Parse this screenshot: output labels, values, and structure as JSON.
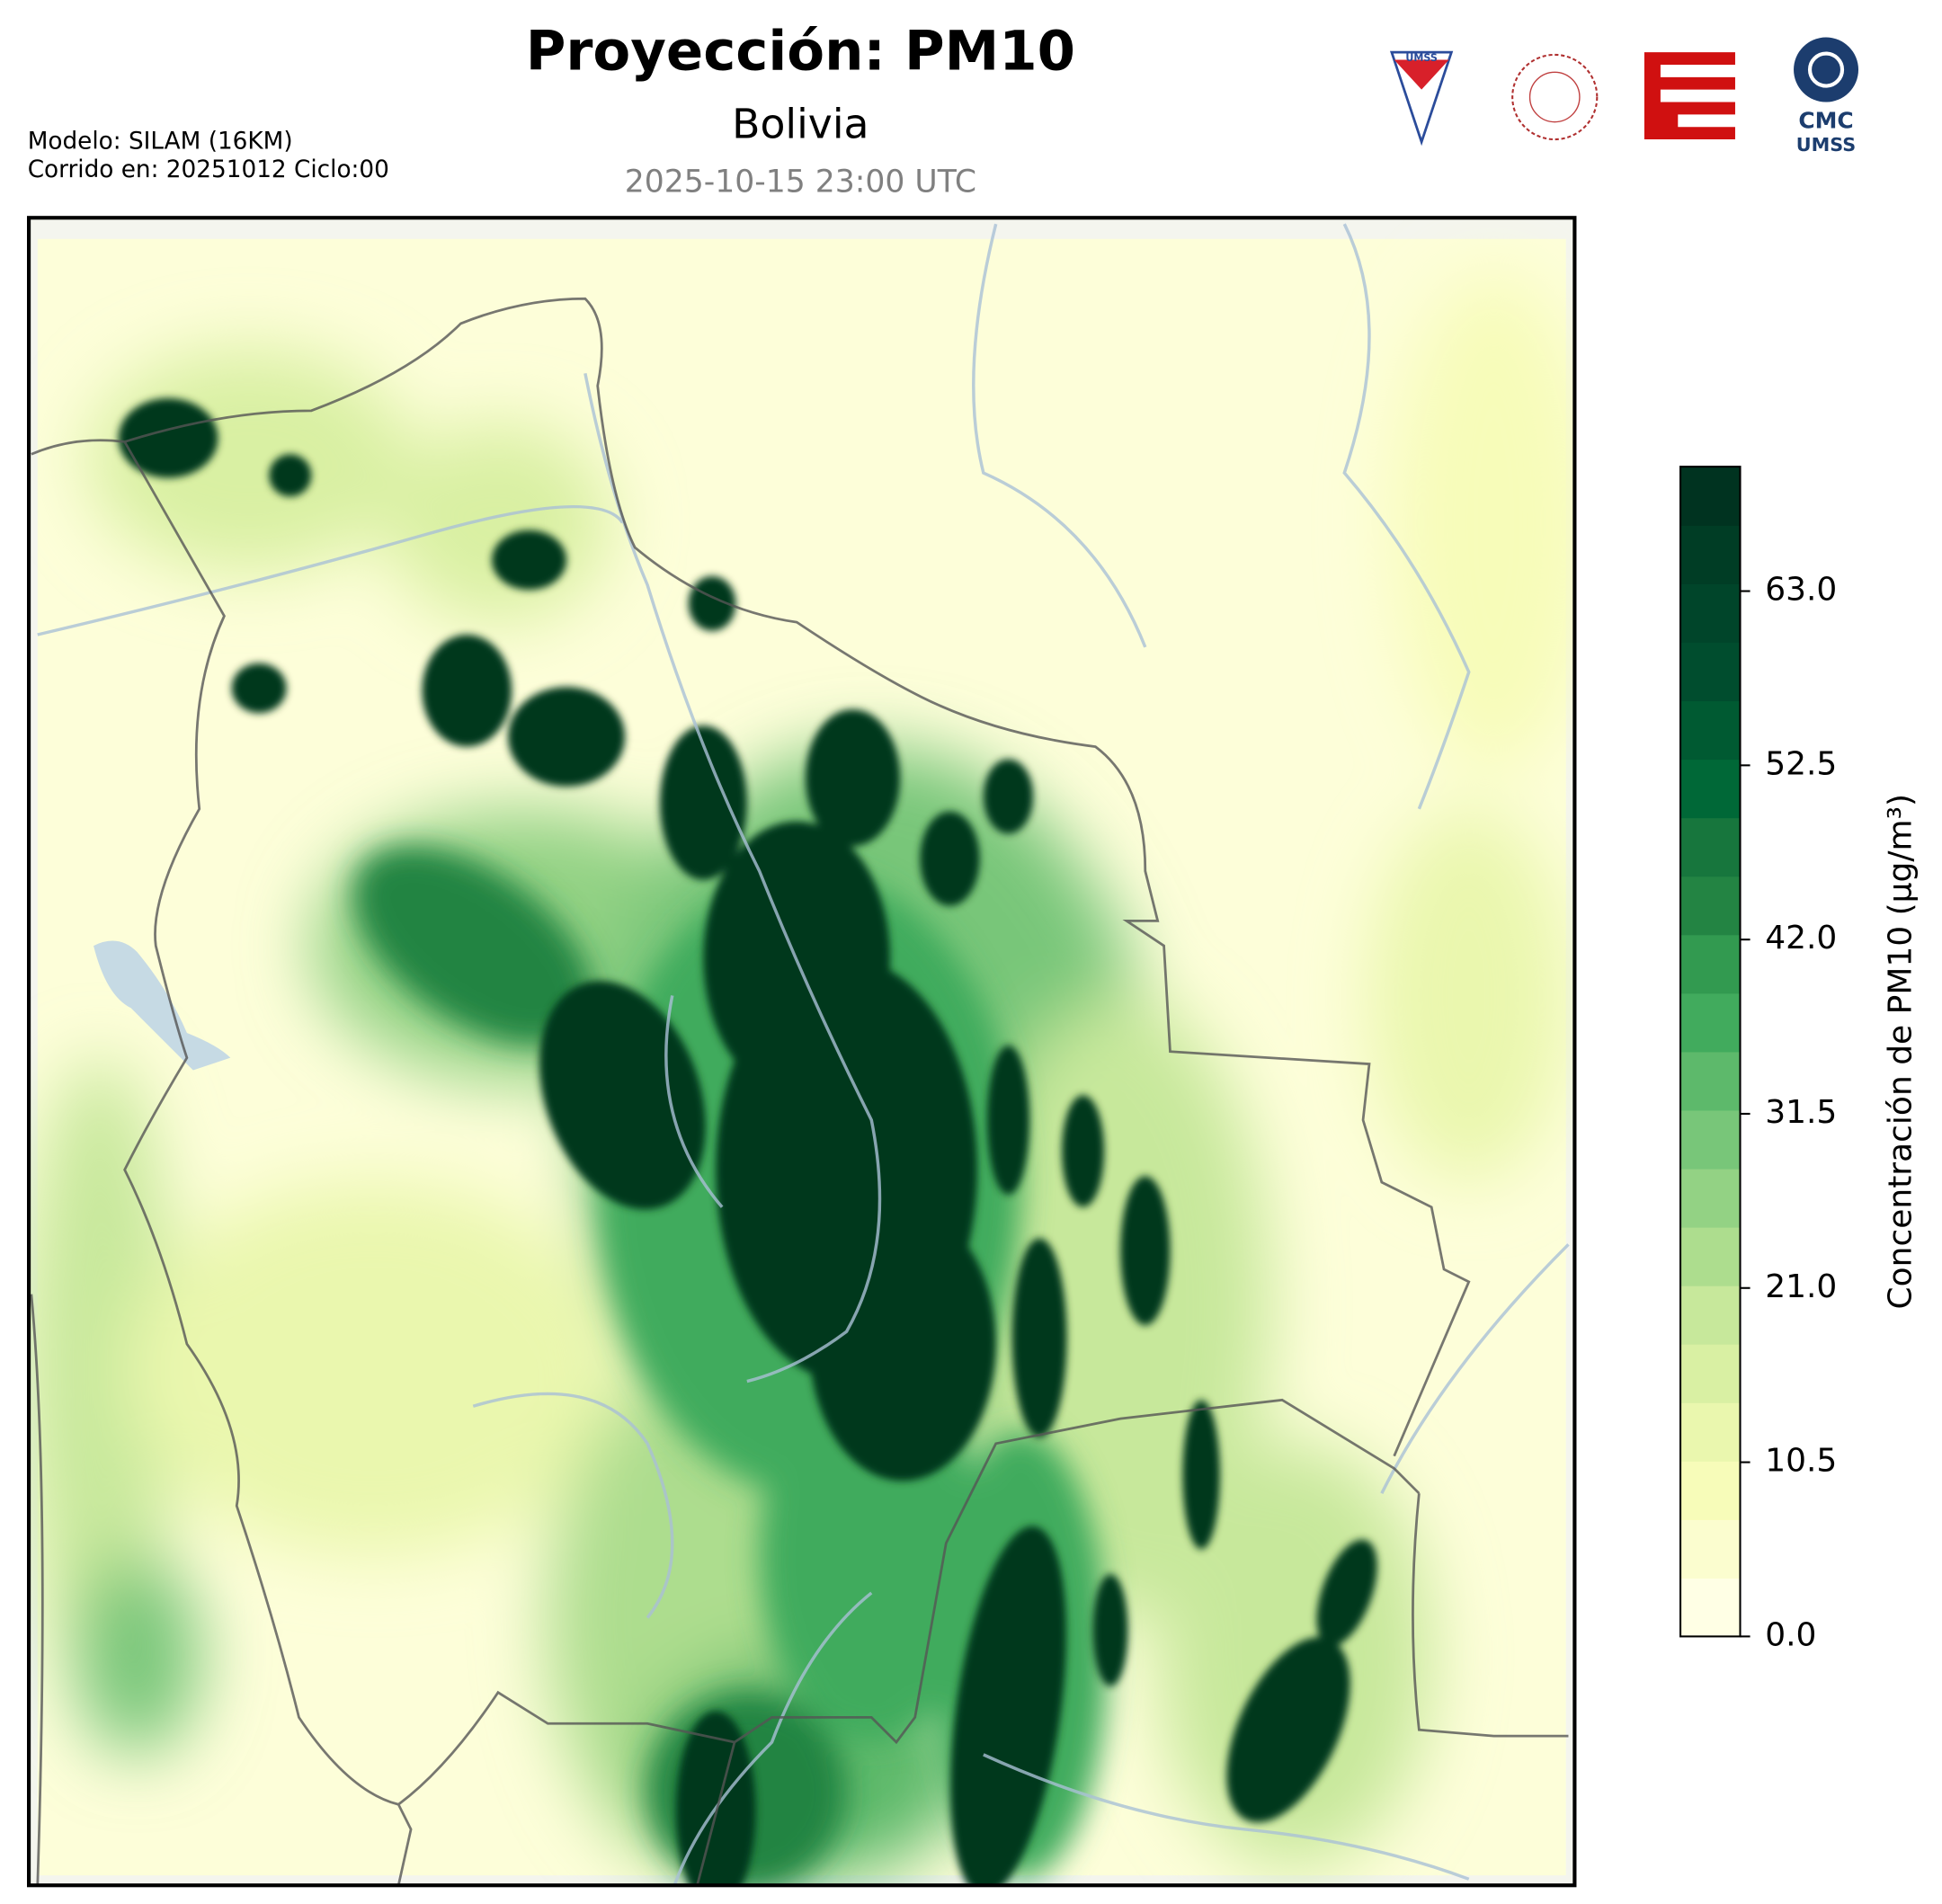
{
  "header": {
    "title": "Proyección: PM10",
    "subtitle": "Bolivia",
    "valid_time": "2025-10-15 23:00 UTC",
    "model": "Modelo: SILAM (16KM)",
    "run": "Corrido en: 20251012 Ciclo:00"
  },
  "logos": {
    "shield": "UMSS",
    "cmc_top": "CMC",
    "cmc_bottom": "UMSS"
  },
  "colorbar": {
    "label": "Concentración de PM10 (µg/m³)",
    "lim": [
      0,
      70.5
    ],
    "ticks": [
      {
        "value": 0,
        "label": "0.0"
      },
      10.5,
      {
        "value": 21,
        "label": "21.0"
      },
      31.5,
      {
        "value": 42,
        "label": "42.0"
      },
      52.5,
      {
        "value": 63,
        "label": "63.0"
      }
    ],
    "colors": [
      "#ffffe5",
      "#fbfdcf",
      "#f7fcb9",
      "#eaf7ae",
      "#d9f0a3",
      "#c7e89b",
      "#addd8e",
      "#93d284",
      "#78c679",
      "#5db96b",
      "#41ab5d",
      "#329a50",
      "#238443",
      "#17763d",
      "#006837",
      "#005a32",
      "#004d2e",
      "#00452a",
      "#003d25",
      "#003320"
    ]
  }
}
